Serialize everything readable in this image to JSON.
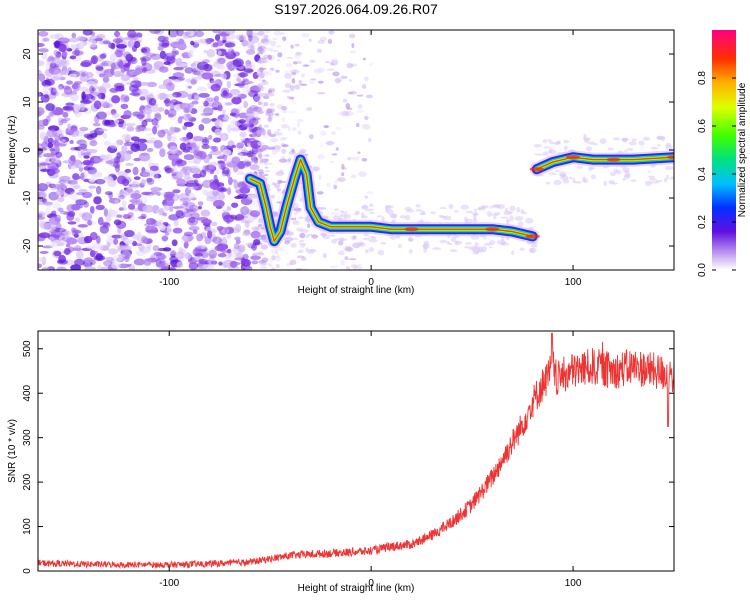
{
  "title": "S197.2026.064.09.26.R07",
  "chart_data": [
    {
      "type": "heatmap",
      "xlabel": "Height of straight line (km)",
      "ylabel": "Frequency (Hz)",
      "xlim": [
        -165,
        150
      ],
      "ylim": [
        -25,
        25
      ],
      "xticks": [
        -100,
        0,
        100
      ],
      "yticks": [
        -20,
        -10,
        0,
        10,
        20
      ],
      "grid": false,
      "colorbar": {
        "label": "Normalized spectral amplitude",
        "range": [
          0,
          1
        ],
        "ticks": [
          0.0,
          0.2,
          0.4,
          0.6,
          0.8
        ],
        "tick_labels": [
          "0.0",
          "0.2",
          "0.4",
          "0.6",
          "0.8"
        ]
      },
      "tracks": [
        {
          "points": [
            [
              -60,
              -6
            ],
            [
              -55,
              -7
            ],
            [
              -52,
              -12
            ],
            [
              -50,
              -16
            ],
            [
              -48,
              -19
            ],
            [
              -45,
              -17
            ],
            [
              -42,
              -12
            ],
            [
              -38,
              -6
            ],
            [
              -35,
              -2
            ],
            [
              -32,
              -5
            ],
            [
              -30,
              -12
            ],
            [
              -26,
              -15
            ],
            [
              -20,
              -16
            ],
            [
              -10,
              -16
            ],
            [
              0,
              -16
            ],
            [
              10,
              -16.5
            ],
            [
              20,
              -16.5
            ],
            [
              40,
              -16.5
            ],
            [
              60,
              -16.5
            ],
            [
              70,
              -17
            ],
            [
              80,
              -18
            ]
          ]
        },
        {
          "points": [
            [
              82,
              -4
            ],
            [
              90,
              -2.5
            ],
            [
              100,
              -1.5
            ],
            [
              110,
              -2
            ],
            [
              120,
              -2
            ],
            [
              130,
              -2
            ],
            [
              150,
              -1.5
            ]
          ]
        }
      ]
    },
    {
      "type": "line",
      "xlabel": "Height of straight line (km)",
      "ylabel": "SNR (10 * v/v)",
      "xlim": [
        -165,
        150
      ],
      "ylim": [
        0,
        540
      ],
      "xticks": [
        -100,
        0,
        100
      ],
      "yticks": [
        0,
        100,
        200,
        300,
        400,
        500
      ],
      "grid": false,
      "series": [
        {
          "color": "#ee3333",
          "x": [
            -165,
            -140,
            -120,
            -100,
            -80,
            -60,
            -40,
            -20,
            0,
            10,
            20,
            30,
            40,
            50,
            60,
            70,
            75,
            80,
            85,
            88,
            90,
            92,
            95,
            100,
            110,
            120,
            130,
            140,
            150
          ],
          "y": [
            18,
            15,
            14,
            14,
            16,
            20,
            35,
            40,
            45,
            55,
            60,
            80,
            110,
            150,
            210,
            290,
            330,
            380,
            420,
            440,
            460,
            430,
            440,
            450,
            460,
            450,
            460,
            450,
            440
          ]
        }
      ]
    }
  ]
}
